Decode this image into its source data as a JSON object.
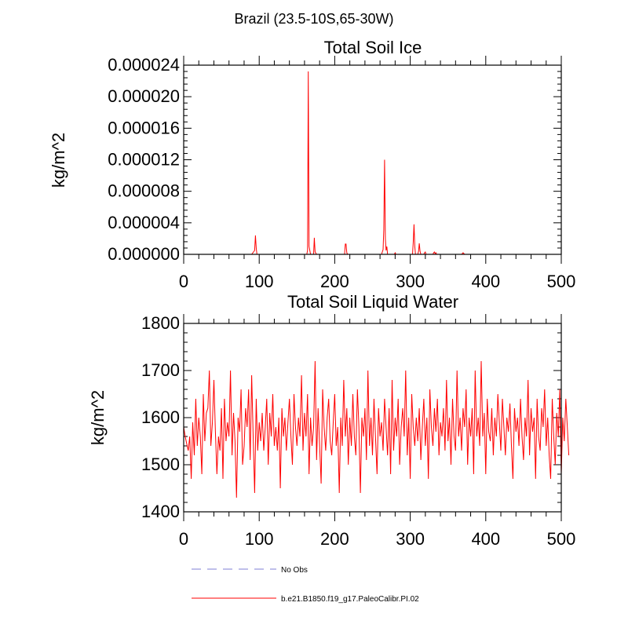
{
  "figure_title": "Brazil (23.5-10S,65-30W)",
  "chart_data": [
    {
      "type": "line",
      "title": "Total Soil Ice",
      "xlabel": "",
      "ylabel": "kg/m^2",
      "xlim": [
        0,
        500
      ],
      "ylim": [
        0,
        2.4e-05
      ],
      "x_ticks": [
        0,
        100,
        200,
        300,
        400,
        500
      ],
      "x_tick_labels": [
        "0",
        "100",
        "200",
        "300",
        "400",
        "500"
      ],
      "y_ticks": [
        0,
        4e-06,
        8e-06,
        1.2e-05,
        1.6e-05,
        2e-05,
        2.4e-05
      ],
      "y_tick_labels": [
        "0.000000",
        "0.000004",
        "0.000008",
        "0.000012",
        "0.000016",
        "0.000020",
        "0.000024"
      ],
      "series": [
        {
          "name": "b.e21.B1850.f19_g17.PaleoCalibr.PI.02",
          "color": "#ff0000",
          "x": [
            0,
            90,
            94,
            95,
            96,
            97,
            99,
            163,
            164,
            165,
            166,
            168,
            172,
            173,
            174,
            176,
            180,
            213,
            214,
            215,
            216,
            217,
            240,
            262,
            264,
            265,
            266,
            267,
            268,
            269,
            270,
            279,
            280,
            281,
            303,
            304,
            305,
            306,
            307,
            310,
            311,
            312,
            313,
            314,
            318,
            319,
            320,
            321,
            330,
            331,
            332,
            333,
            334,
            335,
            368,
            369,
            370,
            371,
            372,
            500
          ],
          "y": [
            0,
            0,
            5e-07,
            2.4e-06,
            8e-07,
            0,
            0,
            0,
            5e-07,
            2.32e-05,
            1e-06,
            0,
            0,
            2.1e-06,
            3e-07,
            0,
            0,
            0,
            1.3e-06,
            1.3e-06,
            2e-07,
            0,
            0,
            0,
            6e-07,
            3.1e-06,
            1.2e-05,
            2e-06,
            5e-07,
            1e-06,
            0,
            0,
            2e-07,
            0,
            0,
            1.5e-06,
            3.8e-06,
            1e-06,
            0,
            0,
            4e-07,
            1.4e-06,
            4e-07,
            0,
            0,
            2e-07,
            3e-07,
            0,
            0,
            2e-07,
            3e-07,
            1e-07,
            2e-07,
            0,
            0,
            1e-07,
            2e-07,
            1e-07,
            0,
            0
          ]
        }
      ]
    },
    {
      "type": "line",
      "title": "Total Soil Liquid Water",
      "xlabel": "",
      "ylabel": "kg/m^2",
      "xlim": [
        0,
        500
      ],
      "ylim": [
        1400,
        1800
      ],
      "x_ticks": [
        0,
        100,
        200,
        300,
        400,
        500
      ],
      "x_tick_labels": [
        "0",
        "100",
        "200",
        "300",
        "400",
        "500"
      ],
      "y_ticks": [
        1400,
        1500,
        1600,
        1700,
        1800
      ],
      "y_tick_labels": [
        "1400",
        "1500",
        "1600",
        "1700",
        "1800"
      ],
      "series": [
        {
          "name": "b.e21.B1850.f19_g17.PaleoCalibr.PI.02",
          "color": "#ff0000",
          "x_start": 0,
          "x_step": 2,
          "y": [
            1580,
            1560,
            1545,
            1530,
            1560,
            1470,
            1590,
            1520,
            1640,
            1540,
            1600,
            1560,
            1480,
            1650,
            1550,
            1610,
            1620,
            1700,
            1540,
            1590,
            1680,
            1570,
            1480,
            1560,
            1530,
            1620,
            1470,
            1640,
            1550,
            1590,
            1560,
            1700,
            1520,
            1610,
            1550,
            1430,
            1600,
            1570,
            1660,
            1500,
            1540,
            1620,
            1580,
            1660,
            1510,
            1690,
            1560,
            1440,
            1640,
            1530,
            1590,
            1550,
            1610,
            1530,
            1580,
            1640,
            1500,
            1610,
            1560,
            1650,
            1540,
            1580,
            1530,
            1600,
            1450,
            1620,
            1560,
            1600,
            1530,
            1590,
            1640,
            1560,
            1500,
            1650,
            1580,
            1540,
            1600,
            1560,
            1690,
            1530,
            1610,
            1560,
            1650,
            1480,
            1600,
            1540,
            1580,
            1720,
            1510,
            1620,
            1540,
            1460,
            1660,
            1580,
            1530,
            1600,
            1640,
            1550,
            1520,
            1590,
            1650,
            1540,
            1580,
            1440,
            1600,
            1540,
            1680,
            1560,
            1620,
            1500,
            1600,
            1540,
            1650,
            1560,
            1520,
            1660,
            1580,
            1440,
            1600,
            1560,
            1620,
            1510,
            1700,
            1540,
            1600,
            1520,
            1640,
            1560,
            1480,
            1620,
            1560,
            1590,
            1530,
            1640,
            1580,
            1520,
            1620,
            1480,
            1680,
            1530,
            1600,
            1560,
            1640,
            1500,
            1580,
            1620,
            1560,
            1700,
            1520,
            1600,
            1470,
            1650,
            1580,
            1540,
            1600,
            1550,
            1620,
            1510,
            1580,
            1640,
            1540,
            1600,
            1470,
            1660,
            1580,
            1540,
            1620,
            1570,
            1640,
            1520,
            1590,
            1560,
            1620,
            1530,
            1680,
            1550,
            1600,
            1500,
            1640,
            1560,
            1530,
            1700,
            1560,
            1600,
            1530,
            1620,
            1580,
            1660,
            1500,
            1600,
            1560,
            1620,
            1480,
            1700,
            1560,
            1600,
            1540,
            1720,
            1560,
            1610,
            1480,
            1640,
            1570,
            1550,
            1620,
            1520,
            1600,
            1560,
            1650,
            1590,
            1530,
            1640,
            1580,
            1520,
            1600,
            1570,
            1630,
            1540,
            1470,
            1620,
            1570,
            1600,
            1540,
            1640,
            1560,
            1510,
            1600,
            1560,
            1680,
            1520,
            1620,
            1570,
            1600,
            1470,
            1640,
            1560,
            1530,
            1620,
            1580,
            1660,
            1540,
            1600,
            1520,
            1470,
            1640,
            1560,
            1500,
            1610,
            1560,
            1660,
            1480,
            1600,
            1550,
            1640,
            1580,
            1520
          ]
        }
      ]
    }
  ],
  "legend": {
    "entries": [
      {
        "label": "No Obs",
        "style": "dashed",
        "color": "#9999dd"
      },
      {
        "label": "b.e21.B1850.f19_g17.PaleoCalibr.PI.02",
        "style": "solid",
        "color": "#ff0000"
      }
    ]
  }
}
